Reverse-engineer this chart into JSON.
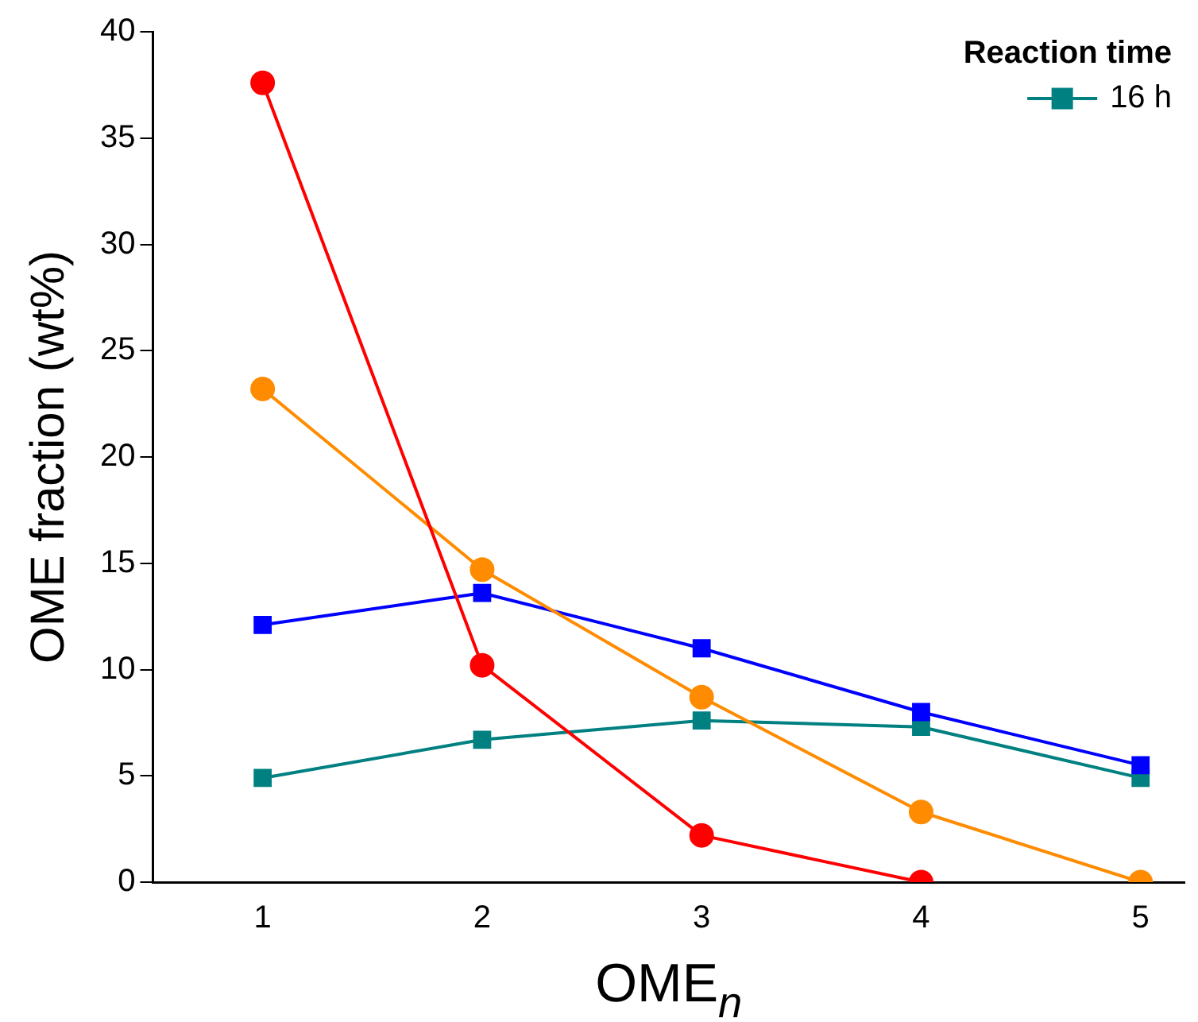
{
  "chart_data": {
    "type": "line",
    "xlabel": "OME$_{n}$",
    "ylabel": "OME fraction (wt%)",
    "legend_title": "Reaction time",
    "legend": "top right",
    "grid": false,
    "x": [
      1,
      2,
      3,
      4,
      5
    ],
    "xlim": [
      0.5,
      5.2
    ],
    "xticks": [
      1,
      2,
      3,
      4,
      5
    ],
    "ylim": [
      0,
      40
    ],
    "yticks": [
      0,
      5,
      10,
      15,
      20,
      25,
      30,
      35,
      40
    ],
    "series": [
      {
        "color": "#ff0000",
        "marker": "circle",
        "values": [
          37.6,
          10.2,
          2.2,
          0,
          null
        ]
      },
      {
        "color": "#ff8c00",
        "marker": "circle",
        "values": [
          23.2,
          14.7,
          8.7,
          3.3,
          0
        ]
      },
      {
        "color": "#0000ff",
        "marker": "square",
        "values": [
          12.1,
          13.6,
          11.0,
          8.0,
          5.5
        ]
      },
      {
        "name": "16 h",
        "color": "#008080",
        "marker": "square",
        "values": [
          4.9,
          6.7,
          7.6,
          7.3,
          4.9
        ]
      }
    ]
  }
}
